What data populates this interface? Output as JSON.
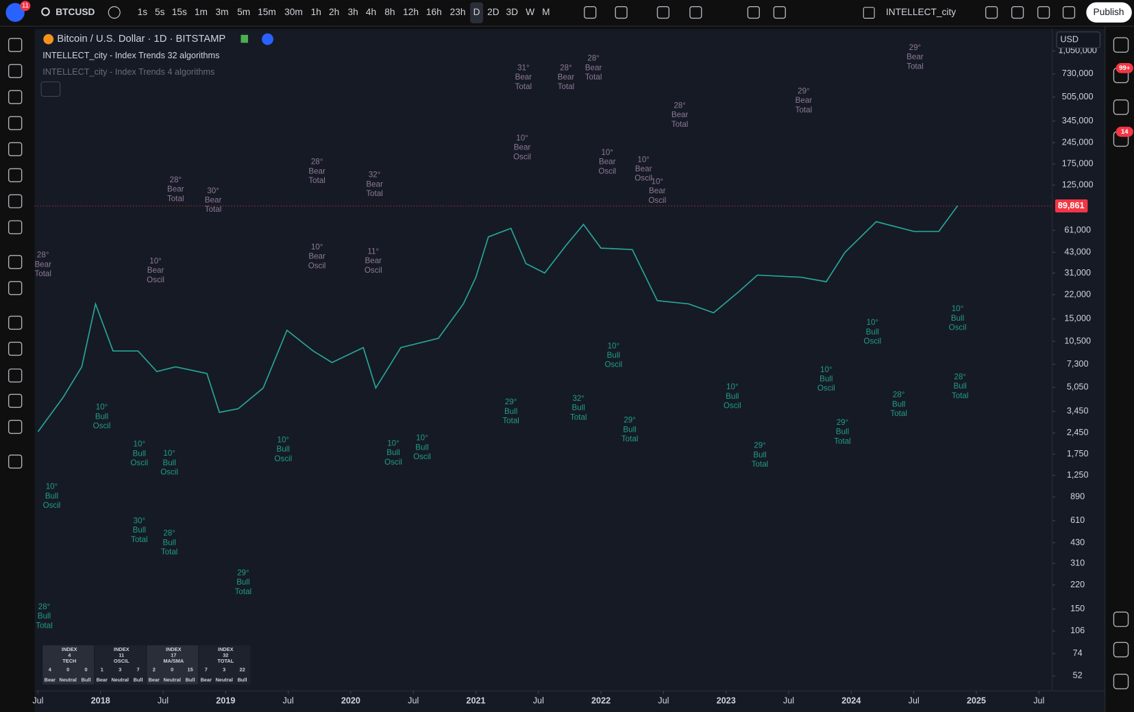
{
  "toolbar": {
    "symbol": "BTCUSD",
    "timeframes": [
      "1s",
      "5s",
      "15s",
      "1m",
      "3m",
      "5m",
      "15m",
      "30m",
      "1h",
      "2h",
      "3h",
      "4h",
      "8h",
      "12h",
      "16h",
      "23h",
      "D",
      "2D",
      "3D",
      "W",
      "M"
    ],
    "active_timeframe_index": 16,
    "layout_name": "INTELLECT_city",
    "publish": "Publish",
    "avatar_badge": "11"
  },
  "sidebar": {
    "badges": [
      "99+",
      "14"
    ]
  },
  "chart_data": {
    "type": "line",
    "series": [
      {
        "name": "Bitcoin / U.S. Dollar · 1D · BITSTAMP",
        "color": "#26a69a",
        "values": [
          2500,
          4300,
          7000,
          19000,
          9000,
          9000,
          6500,
          7000,
          6300,
          3400,
          3600,
          5000,
          12500,
          9000,
          7500,
          9500,
          5000,
          9500,
          11000,
          19000,
          29000,
          55000,
          63000,
          36000,
          31000,
          48000,
          67000,
          46000,
          45000,
          20000,
          19000,
          16500,
          23000,
          30000,
          29000,
          27000,
          43000,
          70000,
          60000,
          60000,
          90000
        ]
      }
    ],
    "x": [
      2017.5,
      2017.7,
      2017.85,
      2017.96,
      2018.1,
      2018.3,
      2018.45,
      2018.6,
      2018.85,
      2018.95,
      2019.1,
      2019.3,
      2019.49,
      2019.7,
      2019.85,
      2020.1,
      2020.2,
      2020.4,
      2020.7,
      2020.9,
      2021.0,
      2021.1,
      2021.28,
      2021.4,
      2021.55,
      2021.72,
      2021.86,
      2022.0,
      2022.25,
      2022.45,
      2022.7,
      2022.9,
      2023.1,
      2023.25,
      2023.6,
      2023.8,
      2023.95,
      2024.2,
      2024.5,
      2024.7,
      2024.85
    ],
    "indicators": [
      "INTELLECT_city - Index Trends 32 algorithms",
      "INTELLECT_city - Index Trends 4 algorithms"
    ],
    "currency": "USD",
    "log_scale": true,
    "last_price": {
      "value": 89861,
      "label": "89,861"
    },
    "xlim": [
      2017.474,
      2025.607
    ],
    "ylim": [
      41,
      1486000
    ],
    "xticks": [
      {
        "value": 2017.5,
        "label": "Jul"
      },
      {
        "value": 2018,
        "label": "2018"
      },
      {
        "value": 2018.5,
        "label": "Jul"
      },
      {
        "value": 2019,
        "label": "2019"
      },
      {
        "value": 2019.5,
        "label": "Jul"
      },
      {
        "value": 2020,
        "label": "2020"
      },
      {
        "value": 2020.5,
        "label": "Jul"
      },
      {
        "value": 2021,
        "label": "2021"
      },
      {
        "value": 2021.5,
        "label": "Jul"
      },
      {
        "value": 2022,
        "label": "2022"
      },
      {
        "value": 2022.5,
        "label": "Jul"
      },
      {
        "value": 2023,
        "label": "2023"
      },
      {
        "value": 2023.5,
        "label": "Jul"
      },
      {
        "value": 2024,
        "label": "2024"
      },
      {
        "value": 2024.5,
        "label": "Jul"
      },
      {
        "value": 2025,
        "label": "2025"
      },
      {
        "value": 2025.5,
        "label": "Jul"
      }
    ],
    "yticks": [
      {
        "value": 1050000,
        "label": "1,050,000"
      },
      {
        "value": 730000,
        "label": "730,000"
      },
      {
        "value": 505000,
        "label": "505,000"
      },
      {
        "value": 345000,
        "label": "345,000"
      },
      {
        "value": 245000,
        "label": "245,000"
      },
      {
        "value": 175000,
        "label": "175,000"
      },
      {
        "value": 125000,
        "label": "125,000"
      },
      {
        "value": 61000,
        "label": "61,000"
      },
      {
        "value": 43000,
        "label": "43,000"
      },
      {
        "value": 31000,
        "label": "31,000"
      },
      {
        "value": 22000,
        "label": "22,000"
      },
      {
        "value": 15000,
        "label": "15,000"
      },
      {
        "value": 10500,
        "label": "10,500"
      },
      {
        "value": 7300,
        "label": "7,300"
      },
      {
        "value": 5050,
        "label": "5,050"
      },
      {
        "value": 3450,
        "label": "3,450"
      },
      {
        "value": 2450,
        "label": "2,450"
      },
      {
        "value": 1750,
        "label": "1,750"
      },
      {
        "value": 1250,
        "label": "1,250"
      },
      890,
      610,
      430,
      310,
      220,
      150,
      106,
      74,
      52
    ],
    "annotations": [
      {
        "x": 2017.54,
        "y": 44000,
        "lines": [
          "28°",
          "Bear",
          "Total"
        ],
        "color": "#8e7a98"
      },
      {
        "x": 2018.44,
        "y": 40000,
        "lines": [
          "10°",
          "Bear",
          "Oscil"
        ],
        "color": "#8e7a98"
      },
      {
        "x": 2018.6,
        "y": 145000,
        "lines": [
          "28°",
          "Bear",
          "Total"
        ],
        "color": "#8e7a98"
      },
      {
        "x": 2018.9,
        "y": 122000,
        "lines": [
          "30°",
          "Bear",
          "Total"
        ],
        "color": "#8e7a98"
      },
      {
        "x": 2019.73,
        "y": 193000,
        "lines": [
          "28°",
          "Bear",
          "Total"
        ],
        "color": "#8e7a98"
      },
      {
        "x": 2020.19,
        "y": 157000,
        "lines": [
          "32°",
          "Bear",
          "Total"
        ],
        "color": "#8e7a98"
      },
      {
        "x": 2019.73,
        "y": 50000,
        "lines": [
          "10°",
          "Bear",
          "Oscil"
        ],
        "color": "#8e7a98"
      },
      {
        "x": 2020.18,
        "y": 46500,
        "lines": [
          "11°",
          "Bear",
          "Oscil"
        ],
        "color": "#8e7a98"
      },
      {
        "x": 2021.38,
        "y": 857000,
        "lines": [
          "31°",
          "Bear",
          "Total"
        ],
        "color": "#8e7a98"
      },
      {
        "x": 2021.72,
        "y": 857000,
        "lines": [
          "28°",
          "Bear",
          "Total"
        ],
        "color": "#8e7a98"
      },
      {
        "x": 2021.37,
        "y": 281000,
        "lines": [
          "10°",
          "Bear",
          "Oscil"
        ],
        "color": "#8e7a98"
      },
      {
        "x": 2022.05,
        "y": 224000,
        "lines": [
          "10°",
          "Bear",
          "Oscil"
        ],
        "color": "#8e7a98"
      },
      {
        "x": 2022.34,
        "y": 200000,
        "lines": [
          "10°",
          "Bear",
          "Oscil"
        ],
        "color": "#8e7a98"
      },
      {
        "x": 2022.45,
        "y": 141000,
        "lines": [
          "10°",
          "Bear",
          "Oscil"
        ],
        "color": "#8e7a98"
      },
      {
        "x": 2021.94,
        "y": 995000,
        "lines": [
          "28°",
          "Bear",
          "Total"
        ],
        "color": "#8e7a98"
      },
      {
        "x": 2023.62,
        "y": 593000,
        "lines": [
          "29°",
          "Bear",
          "Total"
        ],
        "color": "#8e7a98"
      },
      {
        "x": 2024.51,
        "y": 1180000,
        "lines": [
          "29°",
          "Bear",
          "Total"
        ],
        "color": "#8e7a98"
      },
      {
        "x": 2022.63,
        "y": 472000,
        "lines": [
          "28°",
          "Bear",
          "Total"
        ],
        "color": "#8e7a98"
      },
      {
        "x": 2018.01,
        "y": 3940,
        "lines": [
          "10°",
          "Bull",
          "Oscil"
        ],
        "color": "#1f9e89"
      },
      {
        "x": 2018.31,
        "y": 2190,
        "lines": [
          "10°",
          "Bull",
          "Oscil"
        ],
        "color": "#1f9e89"
      },
      {
        "x": 2018.55,
        "y": 1890,
        "lines": [
          "10°",
          "Bull",
          "Oscil"
        ],
        "color": "#1f9e89"
      },
      {
        "x": 2018.31,
        "y": 649,
        "lines": [
          "30°",
          "Bull",
          "Total"
        ],
        "color": "#1f9e89"
      },
      {
        "x": 2018.55,
        "y": 533,
        "lines": [
          "28°",
          "Bull",
          "Total"
        ],
        "color": "#1f9e89"
      },
      {
        "x": 2019.46,
        "y": 2340,
        "lines": [
          "10°",
          "Bull",
          "Oscil"
        ],
        "color": "#1f9e89"
      },
      {
        "x": 2020.34,
        "y": 2220,
        "lines": [
          "10°",
          "Bull",
          "Oscil"
        ],
        "color": "#1f9e89"
      },
      {
        "x": 2020.57,
        "y": 2415,
        "lines": [
          "10°",
          "Bull",
          "Oscil"
        ],
        "color": "#1f9e89"
      },
      {
        "x": 2022.23,
        "y": 3200,
        "lines": [
          "29°",
          "Bull",
          "Total"
        ],
        "color": "#1f9e89"
      },
      {
        "x": 2022.1,
        "y": 10400,
        "lines": [
          "10°",
          "Bull",
          "Oscil"
        ],
        "color": "#1f9e89"
      },
      {
        "x": 2024.85,
        "y": 18750,
        "lines": [
          "10°",
          "Bull",
          "Oscil"
        ],
        "color": "#1f9e89"
      },
      {
        "x": 2024.87,
        "y": 6370,
        "lines": [
          "28°",
          "Bull",
          "Total"
        ],
        "color": "#1f9e89"
      },
      {
        "x": 2021.82,
        "y": 4520,
        "lines": [
          "32°",
          "Bull",
          "Total"
        ],
        "color": "#1f9e89"
      },
      {
        "x": 2021.28,
        "y": 4270,
        "lines": [
          "29°",
          "Bull",
          "Total"
        ],
        "color": "#1f9e89"
      },
      {
        "x": 2023.05,
        "y": 5430,
        "lines": [
          "10°",
          "Bull",
          "Oscil"
        ],
        "color": "#1f9e89"
      },
      {
        "x": 2023.8,
        "y": 7150,
        "lines": [
          "10°",
          "Bull",
          "Oscil"
        ],
        "color": "#1f9e89"
      },
      {
        "x": 2024.17,
        "y": 15070,
        "lines": [
          "10°",
          "Bull",
          "Oscil"
        ],
        "color": "#1f9e89"
      },
      {
        "x": 2023.93,
        "y": 3090,
        "lines": [
          "29°",
          "Bull",
          "Total"
        ],
        "color": "#1f9e89"
      },
      {
        "x": 2023.27,
        "y": 2140,
        "lines": [
          "29°",
          "Bull",
          "Total"
        ],
        "color": "#1f9e89"
      },
      {
        "x": 2024.38,
        "y": 4790,
        "lines": [
          "28°",
          "Bull",
          "Total"
        ],
        "color": "#1f9e89"
      },
      {
        "x": 2017.61,
        "y": 1115,
        "lines": [
          "10°",
          "Bull",
          "Oscil"
        ],
        "color": "#1f9e89"
      },
      {
        "x": 2019.14,
        "y": 284,
        "lines": [
          "29°",
          "Bull",
          "Total"
        ],
        "color": "#1f9e89"
      },
      {
        "x": 2017.55,
        "y": 166,
        "lines": [
          "28°",
          "Bull",
          "Total"
        ],
        "color": "#1f9e89"
      }
    ]
  },
  "table": {
    "columns": [
      {
        "title": [
          "INDEX",
          "4",
          "TECH"
        ],
        "cells": [
          {
            "count": 4,
            "label": "Bear"
          },
          {
            "count": 0,
            "label": "Neutral"
          },
          {
            "count": 0,
            "label": "Bull"
          }
        ]
      },
      {
        "title": [
          "INDEX",
          "11",
          "OSCIL"
        ],
        "cells": [
          {
            "count": 1,
            "label": "Bear"
          },
          {
            "count": 3,
            "label": "Neutral"
          },
          {
            "count": 7,
            "label": "Bull"
          }
        ]
      },
      {
        "title": [
          "INDEX",
          "17",
          "MA/SMA"
        ],
        "cells": [
          {
            "count": 2,
            "label": "Bear"
          },
          {
            "count": 0,
            "label": "Neutral"
          },
          {
            "count": 15,
            "label": "Bull"
          }
        ]
      },
      {
        "title": [
          "INDEX",
          "32",
          "TOTAL"
        ],
        "cells": [
          {
            "count": 7,
            "label": "Bear"
          },
          {
            "count": 3,
            "label": "Neutral"
          },
          {
            "count": 22,
            "label": "Bull"
          }
        ]
      }
    ]
  }
}
